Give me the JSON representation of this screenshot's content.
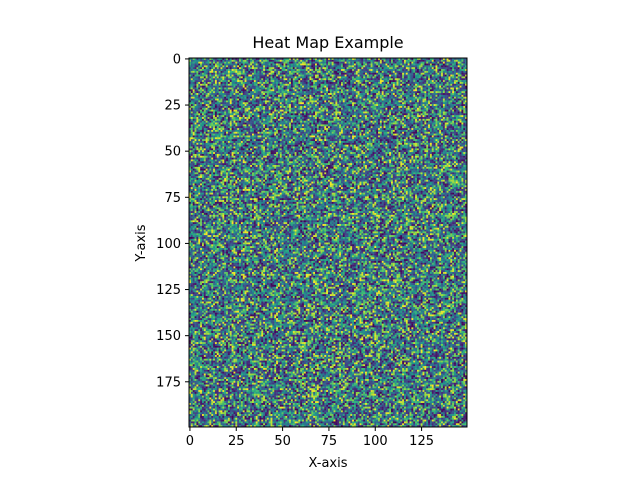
{
  "chart_data": {
    "type": "heatmap",
    "title": "Heat Map Example",
    "xlabel": "X-axis",
    "ylabel": "Y-axis",
    "rows": 200,
    "cols": 150,
    "xlim": [
      -0.5,
      149.5
    ],
    "ylim": [
      199.5,
      -0.5
    ],
    "y_inverted": true,
    "grid": false,
    "value_range": [
      0,
      1
    ],
    "colormap": "viridis",
    "xticks": [
      0,
      25,
      50,
      75,
      100,
      125
    ],
    "yticks": [
      0,
      25,
      50,
      75,
      100,
      125,
      150,
      175
    ],
    "xtick_labels": [
      "0",
      "25",
      "50",
      "75",
      "100",
      "125"
    ],
    "ytick_labels": [
      "0",
      "25",
      "50",
      "75",
      "100",
      "125",
      "150",
      "175"
    ],
    "values_description": "uniform random noise in [0,1]",
    "random_seed": 42
  }
}
